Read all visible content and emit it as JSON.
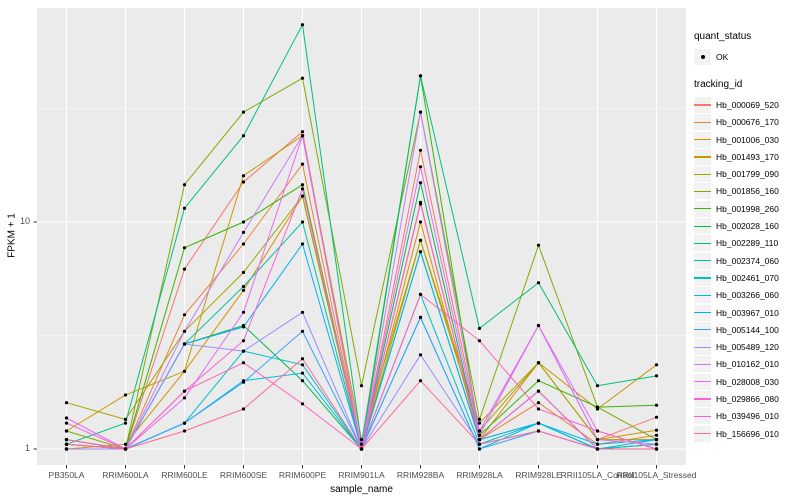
{
  "y_axis": {
    "title": "FPKM + 1",
    "ticks": [
      "10",
      "1"
    ]
  },
  "x_axis": {
    "title": "sample_name"
  },
  "legend": {
    "quant_status": {
      "title": "quant_status",
      "items": [
        {
          "label": "OK",
          "marker": "black-point-icon"
        }
      ]
    },
    "tracking_id": {
      "title": "tracking_id"
    }
  },
  "chart_data": {
    "type": "line",
    "title": "",
    "xlabel": "sample_name",
    "ylabel": "FPKM + 1",
    "yscale": "log10",
    "yticks": [
      1,
      10
    ],
    "ytick_labels": [
      "1",
      "10"
    ],
    "minor_gridlines": [
      3.1623,
      31.6228
    ],
    "ylim": [
      0.85,
      88
    ],
    "grid": true,
    "legend_position": "right",
    "panel_bg": "#EBEBEB",
    "grid_color": "#FFFFFF",
    "marker_color": "#000000",
    "categories": [
      "PB350LA",
      "RRIM600LA",
      "RRIM600LE",
      "RRIM600SE",
      "RRIM600PE",
      "RRIM901LA",
      "RRIM928BA",
      "RRIM928LA",
      "RRIM928LE",
      "RRII105LA_Control",
      "RRII105LA_Stressed"
    ],
    "series": [
      {
        "name": "Hb_000069_520",
        "color": "#F8766D",
        "values": [
          1.1,
          1.0,
          6.2,
          15.0,
          25.0,
          1.0,
          20.7,
          1.2,
          3.5,
          1.1,
          1.38
        ]
      },
      {
        "name": "Hb_000676_170",
        "color": "#E8843A",
        "values": [
          1.05,
          1.0,
          3.9,
          8.0,
          18.0,
          1.0,
          12.0,
          1.1,
          1.6,
          1.05,
          1.15
        ]
      },
      {
        "name": "Hb_001006_030",
        "color": "#D89000",
        "values": [
          1.0,
          1.05,
          2.2,
          5.0,
          13.0,
          1.0,
          10.0,
          1.1,
          2.4,
          1.1,
          1.21
        ]
      },
      {
        "name": "Hb_001493_170",
        "color": "#C49A00",
        "values": [
          1.2,
          1.73,
          2.2,
          16.0,
          24.0,
          1.1,
          8.3,
          1.3,
          2.4,
          1.5,
          2.35
        ]
      },
      {
        "name": "Hb_001799_090",
        "color": "#A3A500",
        "values": [
          1.6,
          1.35,
          3.3,
          6.0,
          13.0,
          1.0,
          8.3,
          1.2,
          2.4,
          1.1,
          1.1
        ]
      },
      {
        "name": "Hb_001856_160",
        "color": "#7CAE00",
        "values": [
          1.2,
          1.0,
          14.6,
          30.5,
          43.0,
          1.9,
          30.5,
          1.35,
          7.9,
          1.53,
          1.1
        ]
      },
      {
        "name": "Hb_001998_260",
        "color": "#39B600",
        "values": [
          1.1,
          1.0,
          7.7,
          10.0,
          14.6,
          1.0,
          44.0,
          1.15,
          2.0,
          1.53,
          1.56
        ]
      },
      {
        "name": "Hb_002028_160",
        "color": "#00BB4E",
        "values": [
          1.05,
          1.0,
          2.9,
          3.5,
          2.0,
          1.0,
          14.9,
          1.1,
          1.8,
          1.0,
          1.05
        ]
      },
      {
        "name": "Hb_002289_110",
        "color": "#00BF7D",
        "values": [
          1.05,
          1.3,
          11.5,
          24.0,
          74.0,
          1.05,
          44.0,
          3.4,
          5.4,
          1.9,
          2.1
        ]
      },
      {
        "name": "Hb_002374_060",
        "color": "#00C1A3",
        "values": [
          1.0,
          1.0,
          2.9,
          5.2,
          10.0,
          1.0,
          7.4,
          1.1,
          1.3,
          1.0,
          1.0
        ]
      },
      {
        "name": "Hb_002461_070",
        "color": "#00BFC4",
        "values": [
          1.0,
          1.0,
          1.3,
          2.7,
          2.35,
          1.0,
          4.8,
          1.05,
          1.3,
          1.0,
          1.05
        ]
      },
      {
        "name": "Hb_003266_060",
        "color": "#00BAE0",
        "values": [
          1.0,
          1.0,
          1.3,
          2.0,
          2.16,
          1.0,
          3.8,
          1.0,
          1.3,
          1.0,
          1.1
        ]
      },
      {
        "name": "Hb_003967_010",
        "color": "#00B0F6",
        "values": [
          1.05,
          1.0,
          2.9,
          3.45,
          8.0,
          1.0,
          7.4,
          1.1,
          1.3,
          1.05,
          1.1
        ]
      },
      {
        "name": "Hb_005144_100",
        "color": "#35A2FF",
        "values": [
          1.0,
          1.0,
          1.3,
          1.97,
          3.3,
          1.0,
          3.8,
          1.0,
          1.2,
          1.0,
          1.0
        ]
      },
      {
        "name": "Hb_005489_120",
        "color": "#9590FF",
        "values": [
          1.0,
          1.0,
          2.9,
          2.7,
          4.0,
          1.0,
          2.6,
          1.05,
          1.2,
          1.0,
          1.0
        ]
      },
      {
        "name": "Hb_010162_010",
        "color": "#C77CFF",
        "values": [
          1.05,
          1.0,
          3.3,
          9.0,
          24.0,
          1.0,
          30.5,
          1.2,
          3.5,
          1.1,
          1.05
        ]
      },
      {
        "name": "Hb_028008_030",
        "color": "#E76BF3",
        "values": [
          1.37,
          1.0,
          1.68,
          4.0,
          24.0,
          1.0,
          17.5,
          1.15,
          3.5,
          1.2,
          1.0
        ]
      },
      {
        "name": "Hb_029866_080",
        "color": "#FA62DB",
        "values": [
          1.3,
          1.0,
          1.8,
          3.0,
          14.0,
          1.0,
          12.2,
          1.1,
          1.8,
          1.0,
          1.0
        ]
      },
      {
        "name": "Hb_039496_010",
        "color": "#FF62BC",
        "values": [
          1.1,
          1.0,
          1.8,
          2.4,
          1.58,
          1.0,
          4.8,
          3.0,
          1.5,
          1.2,
          1.0
        ]
      },
      {
        "name": "Hb_156696_010",
        "color": "#FF6A98",
        "values": [
          1.05,
          1.0,
          1.2,
          1.5,
          2.5,
          1.0,
          2.0,
          1.05,
          1.2,
          1.0,
          1.0
        ]
      }
    ]
  }
}
